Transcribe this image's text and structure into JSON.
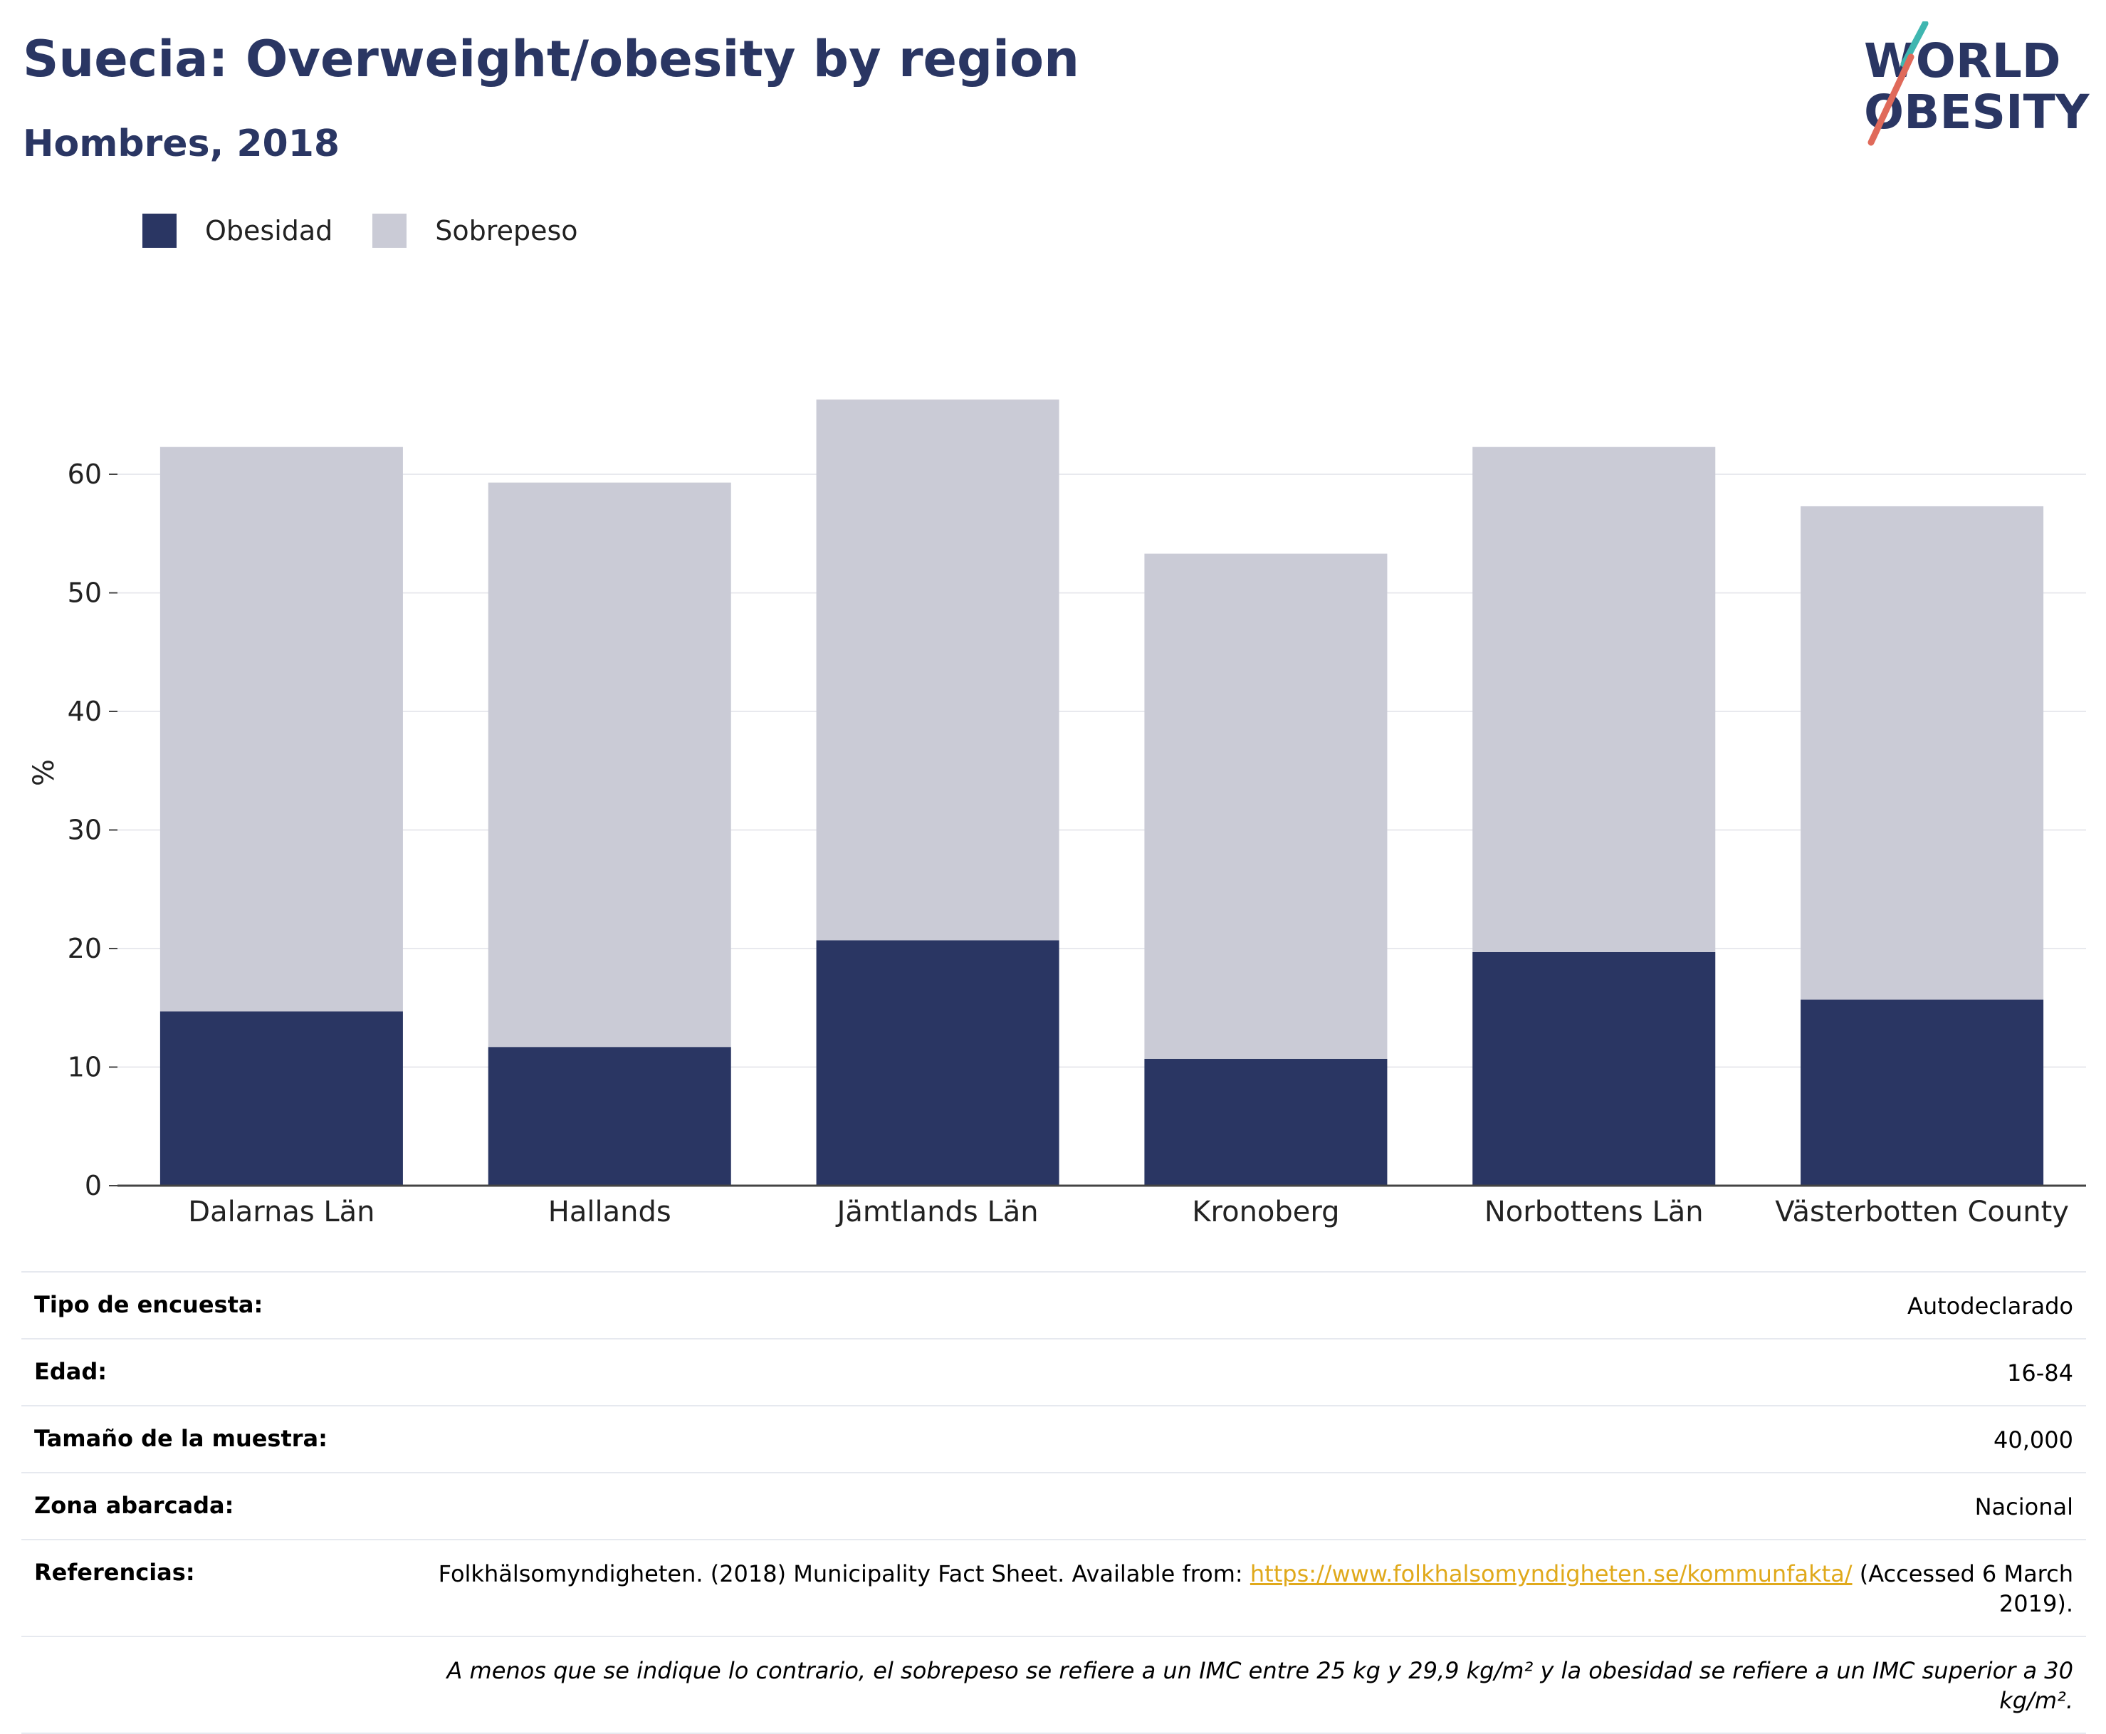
{
  "header": {
    "title": "Suecia: Overweight/obesity by region",
    "subtitle": "Hombres, 2018",
    "logo_line1": "WORLD",
    "logo_line2": "OBESITY"
  },
  "legend": [
    {
      "label": "Obesidad",
      "color": "#2a3663"
    },
    {
      "label": "Sobrepeso",
      "color": "#cacbd6"
    }
  ],
  "chart_data": {
    "type": "bar",
    "stacked": true,
    "categories": [
      "Dalarnas Län",
      "Hallands",
      "Jämtlands Län",
      "Kronoberg",
      "Norbottens Län",
      "Västerbotten County"
    ],
    "series": [
      {
        "name": "Obesidad",
        "color": "#2a3663",
        "values": [
          14.7,
          11.7,
          20.7,
          10.7,
          19.7,
          15.7
        ]
      },
      {
        "name": "Sobrepeso",
        "color": "#cacbd6",
        "values": [
          47.6,
          47.6,
          45.6,
          42.6,
          42.6,
          41.6
        ]
      }
    ],
    "ylabel": "%",
    "yticks": [
      0,
      10,
      20,
      30,
      40,
      50,
      60
    ],
    "ylim": [
      0,
      70
    ],
    "grid": true,
    "legend_position": "top-left"
  },
  "info": {
    "rows": [
      {
        "label": "Tipo de encuesta:",
        "value": "Autodeclarado"
      },
      {
        "label": "Edad:",
        "value": "16-84"
      },
      {
        "label": "Tamaño de la muestra:",
        "value": "40,000"
      },
      {
        "label": "Zona abarcada:",
        "value": "Nacional"
      }
    ],
    "ref_label": "Referencias:",
    "ref_text_before": "Folkhälsomyndigheten. (2018) Municipality Fact Sheet. Available from: ",
    "ref_link": "https://www.folkhalsomyndigheten.se/kommunfakta/",
    "ref_text_after": " (Accessed 6 March 2019).",
    "note": "A menos que se indique lo contrario, el sobrepeso se refiere a un IMC entre 25 kg y 29,9 kg/m² y la obesidad se refiere a un IMC superior a 30 kg/m²."
  }
}
